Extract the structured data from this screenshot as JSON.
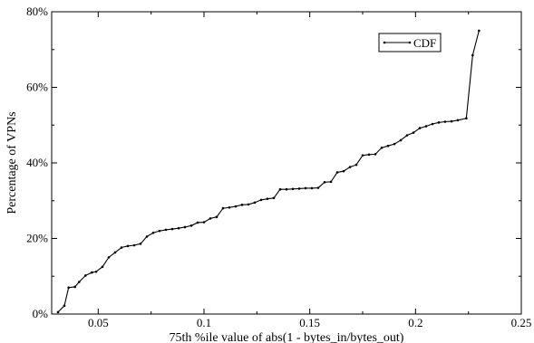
{
  "chart_data": {
    "type": "line",
    "title": "",
    "xlabel": "75th %ile value of abs(1 - bytes_in/bytes_out)",
    "ylabel": "Percentage of VPNs",
    "xlim": [
      0.028,
      0.25
    ],
    "ylim": [
      0,
      80
    ],
    "x_ticks": [
      0.05,
      0.1,
      0.15,
      0.2,
      0.25
    ],
    "x_tick_labels": [
      "0.05",
      "0.1",
      "0.15",
      "0.2",
      "0.25"
    ],
    "y_ticks": [
      0,
      20,
      40,
      60,
      80
    ],
    "y_tick_labels": [
      "0%",
      "20%",
      "40%",
      "60%",
      "80%"
    ],
    "grid": false,
    "legend_position": "top-right",
    "series": [
      {
        "name": "CDF",
        "color": "#000000",
        "marker": "dot",
        "points": [
          [
            0.031,
            0.5
          ],
          [
            0.034,
            2.2
          ],
          [
            0.036,
            7.0
          ],
          [
            0.039,
            7.2
          ],
          [
            0.041,
            8.5
          ],
          [
            0.044,
            10.2
          ],
          [
            0.047,
            11.0
          ],
          [
            0.049,
            11.2
          ],
          [
            0.052,
            12.5
          ],
          [
            0.055,
            15.0
          ],
          [
            0.058,
            16.3
          ],
          [
            0.061,
            17.6
          ],
          [
            0.064,
            18.0
          ],
          [
            0.067,
            18.2
          ],
          [
            0.07,
            18.6
          ],
          [
            0.073,
            20.5
          ],
          [
            0.076,
            21.5
          ],
          [
            0.079,
            22.0
          ],
          [
            0.082,
            22.3
          ],
          [
            0.085,
            22.5
          ],
          [
            0.088,
            22.7
          ],
          [
            0.091,
            23.0
          ],
          [
            0.094,
            23.4
          ],
          [
            0.097,
            24.2
          ],
          [
            0.1,
            24.3
          ],
          [
            0.103,
            25.3
          ],
          [
            0.106,
            25.7
          ],
          [
            0.109,
            28.0
          ],
          [
            0.112,
            28.2
          ],
          [
            0.115,
            28.5
          ],
          [
            0.118,
            28.9
          ],
          [
            0.121,
            29.0
          ],
          [
            0.124,
            29.5
          ],
          [
            0.127,
            30.2
          ],
          [
            0.13,
            30.5
          ],
          [
            0.133,
            30.7
          ],
          [
            0.136,
            33.0
          ],
          [
            0.139,
            33.0
          ],
          [
            0.142,
            33.1
          ],
          [
            0.145,
            33.2
          ],
          [
            0.148,
            33.3
          ],
          [
            0.151,
            33.3
          ],
          [
            0.154,
            33.4
          ],
          [
            0.157,
            34.9
          ],
          [
            0.16,
            35.0
          ],
          [
            0.163,
            37.5
          ],
          [
            0.166,
            37.8
          ],
          [
            0.169,
            38.9
          ],
          [
            0.172,
            39.5
          ],
          [
            0.175,
            42.0
          ],
          [
            0.178,
            42.2
          ],
          [
            0.181,
            42.3
          ],
          [
            0.184,
            44.0
          ],
          [
            0.187,
            44.5
          ],
          [
            0.19,
            45.0
          ],
          [
            0.193,
            46.0
          ],
          [
            0.196,
            47.3
          ],
          [
            0.199,
            48.0
          ],
          [
            0.202,
            49.2
          ],
          [
            0.205,
            49.7
          ],
          [
            0.208,
            50.3
          ],
          [
            0.211,
            50.7
          ],
          [
            0.214,
            50.9
          ],
          [
            0.217,
            51.0
          ],
          [
            0.22,
            51.3
          ],
          [
            0.224,
            51.8
          ],
          [
            0.227,
            68.5
          ],
          [
            0.23,
            75.0
          ]
        ]
      }
    ]
  }
}
